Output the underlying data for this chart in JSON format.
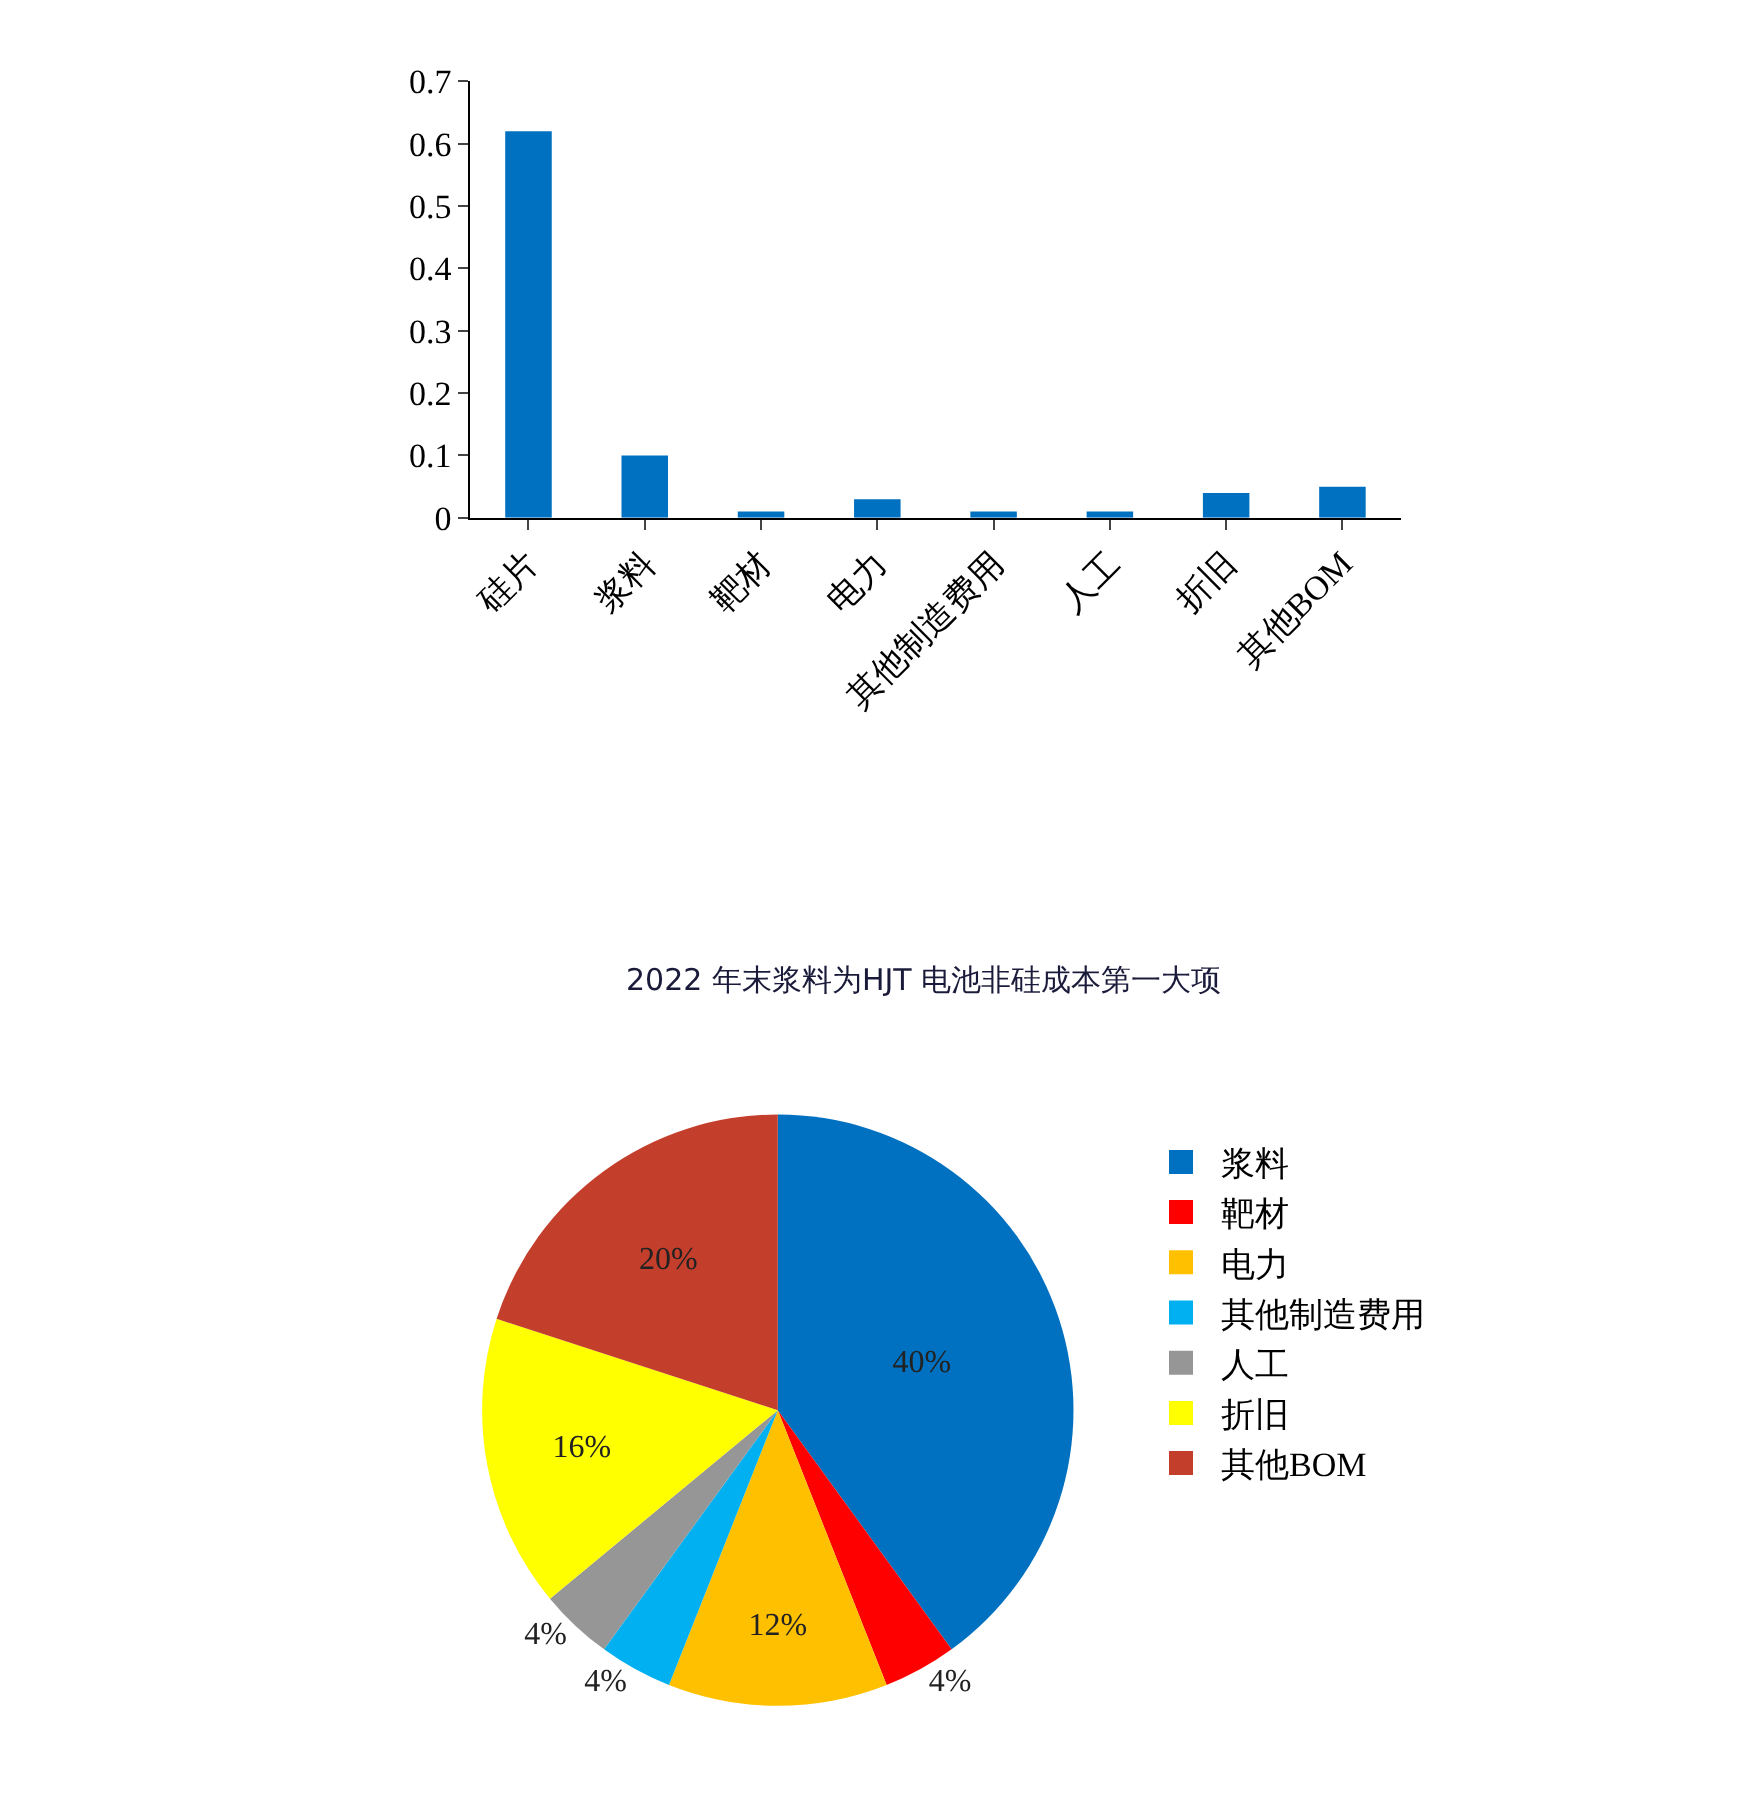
{
  "chart_data": [
    {
      "type": "bar",
      "categories": [
        "硅片",
        "浆料",
        "靶材",
        "电力",
        "其他制造费用",
        "人工",
        "折旧",
        "其他BOM"
      ],
      "values": [
        0.62,
        0.1,
        0.01,
        0.03,
        0.01,
        0.01,
        0.04,
        0.05
      ],
      "color": "#0070c0",
      "ylim": [
        0,
        0.7
      ],
      "yticks": [
        0,
        0.1,
        0.2,
        0.3,
        0.4,
        0.5,
        0.6,
        0.7
      ]
    },
    {
      "type": "pie",
      "title": "2022 年末浆料为HJT 电池非硅成本第一大项",
      "categories": [
        "浆料",
        "靶材",
        "电力",
        "其他制造费用",
        "人工",
        "折旧",
        "其他BOM"
      ],
      "values": [
        40,
        4,
        12,
        4,
        4,
        16,
        20
      ],
      "colors": [
        "#0070c0",
        "#ff0000",
        "#ffc000",
        "#00b0f0",
        "#969696",
        "#ffff00",
        "#c43e2c"
      ],
      "value_labels": [
        "40%",
        "4%",
        "12%",
        "4%",
        "4%",
        "16%",
        "20%"
      ],
      "legend": "right"
    }
  ]
}
